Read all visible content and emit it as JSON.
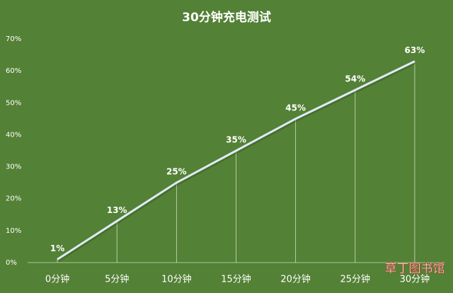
{
  "chart_data": {
    "type": "line",
    "title": "30分钟充电测试",
    "categories": [
      "0分钟",
      "5分钟",
      "10分钟",
      "15分钟",
      "20分钟",
      "25分钟",
      "30分钟"
    ],
    "values": [
      1,
      13,
      25,
      35,
      45,
      54,
      63
    ],
    "value_labels": [
      "1%",
      "13%",
      "25%",
      "35%",
      "45%",
      "54%",
      "63%"
    ],
    "color": "#dfeaf6",
    "ylim": [
      0,
      70
    ],
    "yticks": [
      {
        "value": 0,
        "label": "0%"
      },
      {
        "value": 10,
        "label": "10%"
      },
      {
        "value": 20,
        "label": "20%"
      },
      {
        "value": 30,
        "label": "30%"
      },
      {
        "value": 40,
        "label": "40%"
      },
      {
        "value": 50,
        "label": "50%"
      },
      {
        "value": 60,
        "label": "60%"
      },
      {
        "value": 70,
        "label": "70%"
      }
    ],
    "drop_lines": true
  },
  "watermark": "草丁图书馆"
}
